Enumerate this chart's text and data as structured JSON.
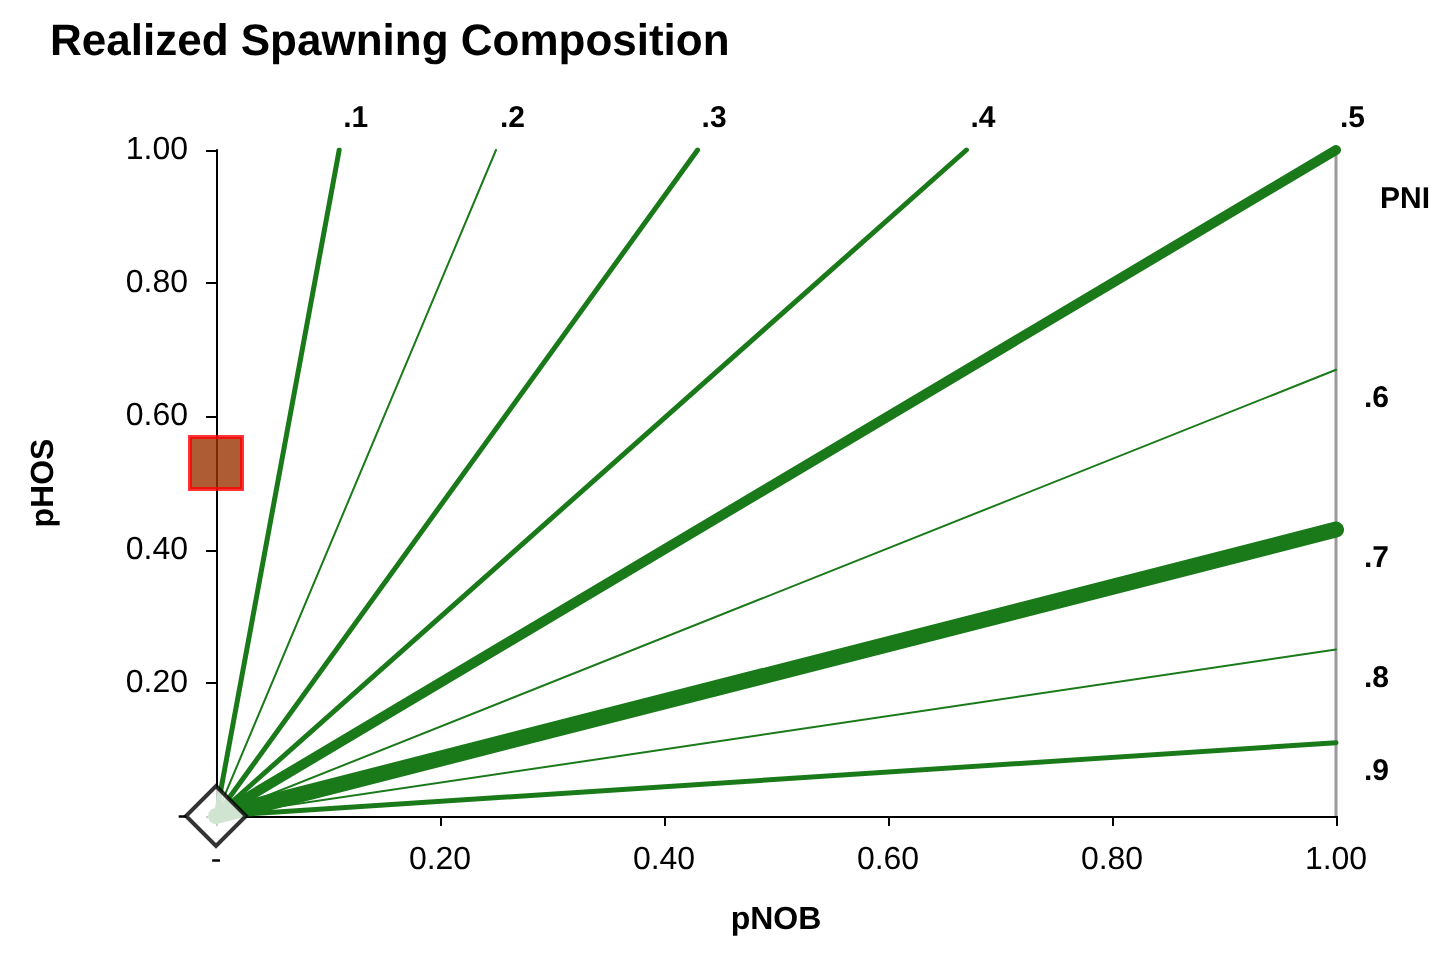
{
  "chart_data": {
    "type": "line",
    "title": "Realized Spawning Composition",
    "xlabel": "pNOB",
    "ylabel": "pHOS",
    "annotations": [
      "PNI"
    ],
    "xlim": [
      0,
      1
    ],
    "ylim": [
      0,
      1
    ],
    "xticks": [
      {
        "value": 0,
        "label": "-"
      },
      {
        "value": 0.2,
        "label": "0.20"
      },
      {
        "value": 0.4,
        "label": "0.40"
      },
      {
        "value": 0.6,
        "label": "0.60"
      },
      {
        "value": 0.8,
        "label": "0.80"
      },
      {
        "value": 1,
        "label": "1.00"
      }
    ],
    "yticks": [
      {
        "value": 0,
        "label": "-"
      },
      {
        "value": 0.2,
        "label": "0.20"
      },
      {
        "value": 0.4,
        "label": "0.40"
      },
      {
        "value": 0.6,
        "label": "0.60"
      },
      {
        "value": 0.8,
        "label": "0.80"
      },
      {
        "value": 1,
        "label": "1.00"
      }
    ],
    "grid": false,
    "legend": false,
    "marker": "none",
    "line_style": "solid",
    "series": [
      {
        "name": ".1",
        "color": "#1a7a1a",
        "x": [
          0,
          0.11
        ],
        "values": [
          0,
          1
        ]
      },
      {
        "name": ".2",
        "color": "#1a7a1a",
        "x": [
          0,
          0.25
        ],
        "values": [
          0,
          1
        ]
      },
      {
        "name": ".3",
        "color": "#1a7a1a",
        "x": [
          0,
          0.43
        ],
        "values": [
          0,
          1
        ]
      },
      {
        "name": ".4",
        "color": "#1a7a1a",
        "x": [
          0,
          0.67
        ],
        "values": [
          0,
          1
        ]
      },
      {
        "name": ".5",
        "color": "#1a7a1a",
        "x": [
          0,
          1
        ],
        "values": [
          0,
          1
        ]
      },
      {
        "name": ".6",
        "color": "#1a7a1a",
        "x": [
          0,
          1
        ],
        "values": [
          0,
          0.67
        ]
      },
      {
        "name": ".7",
        "color": "#1a7a1a",
        "x": [
          0,
          1
        ],
        "values": [
          0,
          0.43
        ]
      },
      {
        "name": ".8",
        "color": "#1a7a1a",
        "x": [
          0,
          1
        ],
        "values": [
          0,
          0.25
        ]
      },
      {
        "name": ".9",
        "color": "#1a7a1a",
        "x": [
          0,
          1
        ],
        "values": [
          0,
          0.11
        ]
      },
      {
        "type": "scatter",
        "marker": "square",
        "color": "#993300",
        "x": [
          0
        ],
        "values": [
          0.53
        ]
      },
      {
        "type": "scatter",
        "marker": "diamond",
        "color": "#ffffff",
        "x": [
          0
        ],
        "values": [
          0
        ]
      }
    ]
  }
}
